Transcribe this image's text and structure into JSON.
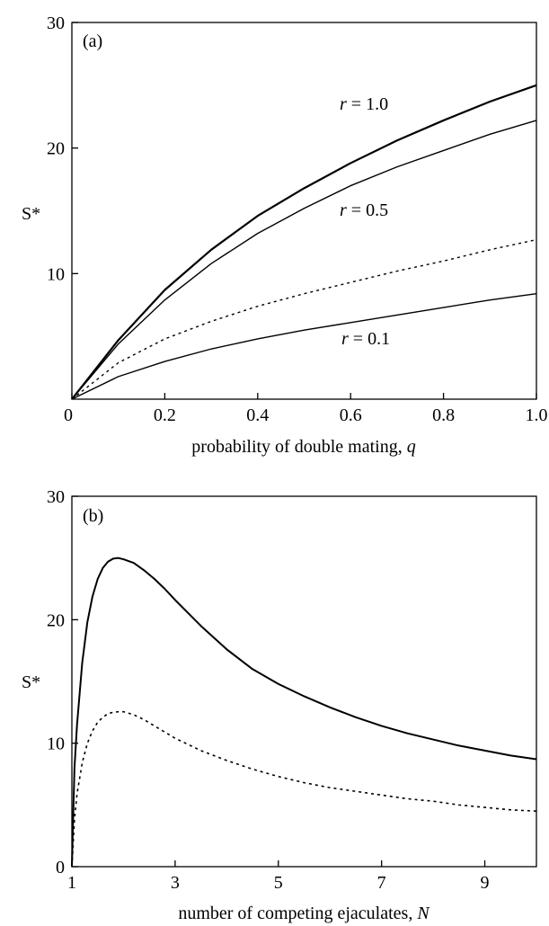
{
  "chart_data": [
    {
      "type": "line",
      "panel_label": "(a)",
      "xlabel_text": "probability of double mating, ",
      "xlabel_var": "q",
      "ylabel_text": "S*",
      "xlim": [
        0,
        1.0
      ],
      "ylim": [
        0,
        30
      ],
      "xticks": [
        0,
        0.2,
        0.4,
        0.6,
        0.8,
        1.0
      ],
      "xtick_labels": [
        "0",
        "0.2",
        "0.4",
        "0.6",
        "0.8",
        "1.0"
      ],
      "yticks": [
        10,
        20,
        30
      ],
      "ytick_labels": [
        "10",
        "20",
        "30"
      ],
      "series": [
        {
          "label_var": "r",
          "label_rest": " = 1.0",
          "style": "solid",
          "width": 2.2,
          "x": [
            0,
            0.1,
            0.2,
            0.3,
            0.4,
            0.5,
            0.6,
            0.7,
            0.8,
            0.9,
            1.0
          ],
          "y": [
            0,
            4.7,
            8.7,
            11.9,
            14.6,
            16.8,
            18.8,
            20.6,
            22.2,
            23.7,
            25.0
          ]
        },
        {
          "label_var": "r",
          "label_rest": " = 0.5",
          "style": "solid",
          "width": 1.4,
          "x": [
            0,
            0.1,
            0.2,
            0.3,
            0.4,
            0.5,
            0.6,
            0.7,
            0.8,
            0.9,
            1.0
          ],
          "y": [
            0,
            4.4,
            7.9,
            10.8,
            13.2,
            15.2,
            17.0,
            18.5,
            19.8,
            21.1,
            22.2
          ]
        },
        {
          "label_var": "",
          "label_rest": "",
          "style": "dotted",
          "width": 1.4,
          "x": [
            0,
            0.1,
            0.2,
            0.3,
            0.4,
            0.5,
            0.6,
            0.7,
            0.8,
            0.9,
            1.0
          ],
          "y": [
            0,
            2.9,
            4.8,
            6.2,
            7.4,
            8.4,
            9.3,
            10.2,
            11.0,
            11.9,
            12.7
          ]
        },
        {
          "label_var": "r",
          "label_rest": " = 0.1",
          "style": "solid",
          "width": 1.4,
          "x": [
            0,
            0.1,
            0.2,
            0.3,
            0.4,
            0.5,
            0.6,
            0.7,
            0.8,
            0.9,
            1.0
          ],
          "y": [
            0,
            1.8,
            3.0,
            4.0,
            4.8,
            5.5,
            6.1,
            6.7,
            7.3,
            7.9,
            8.4
          ]
        }
      ]
    },
    {
      "type": "line",
      "panel_label": "(b)",
      "xlabel_text": "number of competing ejaculates, ",
      "xlabel_var": "N",
      "ylabel_text": "S*",
      "xlim": [
        1,
        10
      ],
      "ylim": [
        0,
        30
      ],
      "xticks": [
        1,
        3,
        5,
        7,
        9
      ],
      "xtick_labels": [
        "1",
        "3",
        "5",
        "7",
        "9"
      ],
      "yticks": [
        0,
        10,
        20,
        30
      ],
      "ytick_labels": [
        "0",
        "10",
        "20",
        "30"
      ],
      "series": [
        {
          "style": "solid",
          "width": 2.0,
          "x": [
            1.0,
            1.05,
            1.1,
            1.2,
            1.3,
            1.4,
            1.5,
            1.6,
            1.7,
            1.8,
            1.9,
            2.0,
            2.2,
            2.4,
            2.6,
            2.8,
            3.0,
            3.5,
            4.0,
            4.5,
            5.0,
            5.5,
            6.0,
            6.5,
            7.0,
            7.5,
            8.0,
            8.5,
            9.0,
            9.5,
            10.0
          ],
          "y": [
            0,
            8.0,
            11.5,
            16.5,
            19.8,
            21.9,
            23.3,
            24.2,
            24.7,
            24.95,
            25.0,
            24.9,
            24.6,
            24.0,
            23.3,
            22.5,
            21.6,
            19.5,
            17.6,
            16.0,
            14.8,
            13.8,
            12.9,
            12.1,
            11.4,
            10.8,
            10.3,
            9.8,
            9.4,
            9.0,
            8.7
          ]
        },
        {
          "style": "dotted",
          "width": 1.6,
          "x": [
            1.0,
            1.05,
            1.1,
            1.2,
            1.3,
            1.4,
            1.5,
            1.6,
            1.7,
            1.8,
            1.9,
            2.0,
            2.2,
            2.4,
            2.6,
            2.8,
            3.0,
            3.5,
            4.0,
            4.5,
            5.0,
            5.5,
            6.0,
            6.5,
            7.0,
            7.5,
            8.0,
            8.5,
            9.0,
            9.5,
            10.0
          ],
          "y": [
            0,
            3.8,
            5.9,
            8.4,
            10.0,
            11.0,
            11.7,
            12.1,
            12.4,
            12.5,
            12.55,
            12.55,
            12.3,
            11.9,
            11.4,
            10.9,
            10.4,
            9.4,
            8.6,
            7.9,
            7.3,
            6.8,
            6.4,
            6.1,
            5.8,
            5.5,
            5.3,
            5.0,
            4.8,
            4.6,
            4.5
          ]
        }
      ]
    }
  ]
}
